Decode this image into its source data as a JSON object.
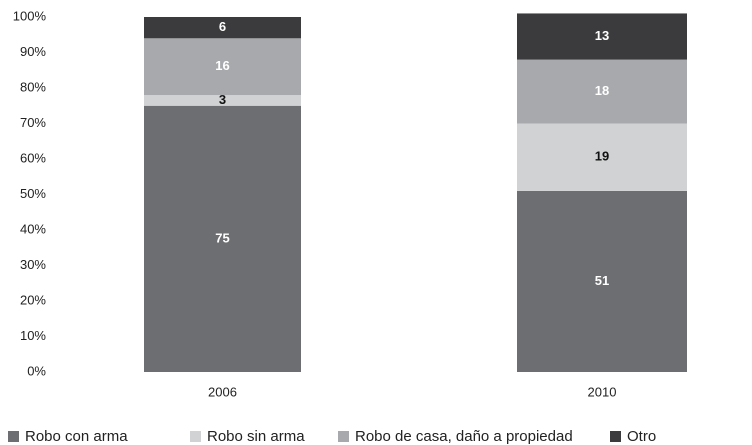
{
  "chart_data": {
    "type": "stacked_bar",
    "categories": [
      "2006",
      "2010"
    ],
    "series": [
      {
        "name": "Robo con arma",
        "color": "#6d6e71",
        "values": [
          75,
          51
        ]
      },
      {
        "name": "Robo sin arma",
        "color": "#d1d2d4",
        "values": [
          3,
          19
        ]
      },
      {
        "name": "Robo de casa, daño a propiedad",
        "color": "#a7a9ac",
        "values": [
          16,
          18
        ]
      },
      {
        "name": "Otro",
        "color": "#3b3b3d",
        "values": [
          6,
          13
        ]
      }
    ],
    "ylim": [
      0,
      100
    ],
    "yticks": [
      {
        "value": 0,
        "label": "0%"
      },
      {
        "value": 10,
        "label": "10%"
      },
      {
        "value": 20,
        "label": "20%"
      },
      {
        "value": 30,
        "label": "30%"
      },
      {
        "value": 40,
        "label": "40%"
      },
      {
        "value": 50,
        "label": "50%"
      },
      {
        "value": 60,
        "label": "60%"
      },
      {
        "value": 70,
        "label": "70%"
      },
      {
        "value": 80,
        "label": "80%"
      },
      {
        "value": 90,
        "label": "90%"
      },
      {
        "value": 100,
        "label": "100%"
      }
    ],
    "grid": false,
    "legend": "bottom"
  }
}
